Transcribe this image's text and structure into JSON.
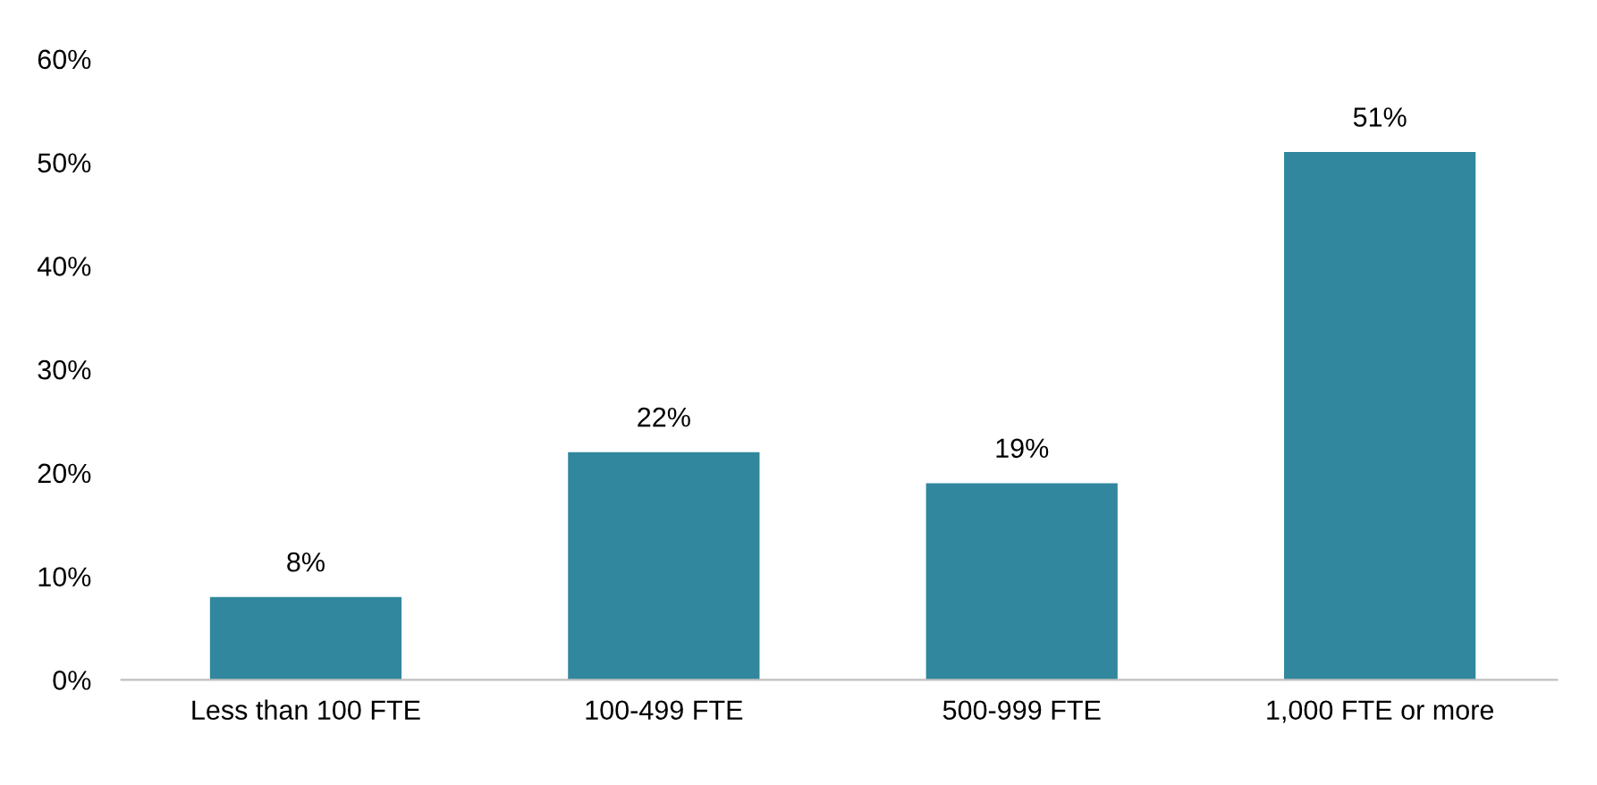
{
  "chart_data": {
    "type": "bar",
    "categories": [
      "Less than 100 FTE",
      "100-499 FTE",
      "500-999 FTE",
      "1,000 FTE or more"
    ],
    "values": [
      8,
      22,
      19,
      51
    ],
    "color": "#31879e",
    "value_labels": [
      "8%",
      "22%",
      "19%",
      "51%"
    ],
    "ylim": [
      0,
      60
    ],
    "yticks": [
      {
        "value": 0,
        "label": "0%"
      },
      {
        "value": 10,
        "label": "10%"
      },
      {
        "value": 20,
        "label": "20%"
      },
      {
        "value": 30,
        "label": "30%"
      },
      {
        "value": 40,
        "label": "40%"
      },
      {
        "value": 50,
        "label": "50%"
      },
      {
        "value": 60,
        "label": "60%"
      }
    ],
    "grid": false,
    "legend": false
  }
}
